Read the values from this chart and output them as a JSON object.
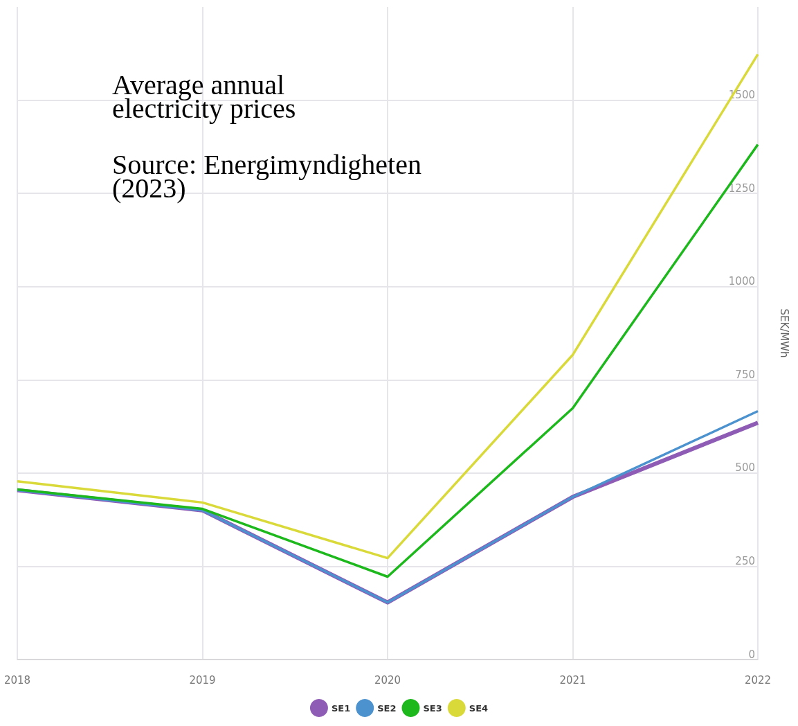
{
  "chart_data": {
    "type": "line",
    "title": "Average annual electricity prices",
    "annotations": [
      "Source: Energimyndigheten (2023)"
    ],
    "ylabel": "SEK/MWh",
    "categories": [
      "2018",
      "2019",
      "2020",
      "2021",
      "2022"
    ],
    "series": [
      {
        "name": "SE1",
        "color": "#8e5bb5",
        "values": [
          454,
          400,
          153,
          436,
          635
        ]
      },
      {
        "name": "SE2",
        "color": "#4b92cf",
        "values": [
          454,
          400,
          153,
          436,
          666
        ]
      },
      {
        "name": "SE3",
        "color": "#1cb81c",
        "values": [
          456,
          404,
          222,
          674,
          1381
        ]
      },
      {
        "name": "SE4",
        "color": "#d9d93a",
        "values": [
          478,
          421,
          272,
          817,
          1623
        ]
      }
    ],
    "ylim": [
      0,
      1750
    ],
    "yticks": [
      0,
      250,
      500,
      750,
      1000,
      1250,
      1500
    ],
    "grid": true,
    "legend": "bottom",
    "marker": "none",
    "line_style": "solid"
  }
}
